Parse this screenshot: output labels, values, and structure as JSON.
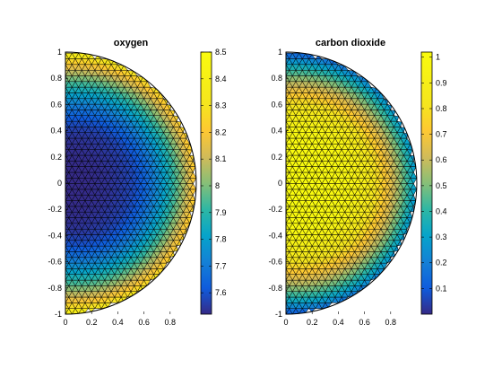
{
  "chart_data": [
    {
      "type": "heatmap",
      "title": "oxygen",
      "xlabel": "",
      "ylabel": "",
      "xlim": [
        0,
        1
      ],
      "ylim": [
        -1,
        1
      ],
      "x_ticks": [
        "0",
        "0.2",
        "0.4",
        "0.6",
        "0.8"
      ],
      "x_tick_values": [
        0,
        0.2,
        0.4,
        0.6,
        0.8
      ],
      "y_ticks": [
        "1",
        "0.8",
        "0.6",
        "0.4",
        "0.2",
        "0",
        "-0.2",
        "-0.4",
        "-0.6",
        "-0.8",
        "-1"
      ],
      "y_tick_values": [
        1,
        0.8,
        0.6,
        0.4,
        0.2,
        0,
        -0.2,
        -0.4,
        -0.6,
        -0.8,
        -1
      ],
      "domain": "half-disk, radius 1, x >= 0",
      "mesh": "triangular",
      "field": {
        "min": 7.52,
        "max": 8.5,
        "center_value": 7.52,
        "boundary_value": 8.5,
        "min_location": [
          0.15,
          0
        ]
      },
      "colorbar": {
        "range": [
          7.52,
          8.5
        ],
        "ticks": [
          "8.5",
          "8.4",
          "8.3",
          "8.2",
          "8.1",
          "8",
          "7.9",
          "7.8",
          "7.7",
          "7.6"
        ],
        "tick_values": [
          8.5,
          8.4,
          8.3,
          8.2,
          8.1,
          8.0,
          7.9,
          7.8,
          7.7,
          7.6
        ],
        "colormap": "parula"
      },
      "grid": false
    },
    {
      "type": "heatmap",
      "title": "carbon dioxide",
      "xlabel": "",
      "ylabel": "",
      "xlim": [
        0,
        1
      ],
      "ylim": [
        -1,
        1
      ],
      "x_ticks": [
        "0",
        "0.2",
        "0.4",
        "0.6",
        "0.8"
      ],
      "x_tick_values": [
        0,
        0.2,
        0.4,
        0.6,
        0.8
      ],
      "y_ticks": [
        "1",
        "0.8",
        "0.6",
        "0.4",
        "0.2",
        "0",
        "-0.2",
        "-0.4",
        "-0.6",
        "-0.8",
        "-1"
      ],
      "y_tick_values": [
        1,
        0.8,
        0.6,
        0.4,
        0.2,
        0,
        -0.2,
        -0.4,
        -0.6,
        -0.8,
        -1
      ],
      "domain": "half-disk, radius 1, x >= 0",
      "mesh": "triangular",
      "field": {
        "min": 0,
        "max": 1.02,
        "center_value": 1.02,
        "boundary_value": 0,
        "max_location": [
          0.15,
          0
        ]
      },
      "colorbar": {
        "range": [
          0,
          1.02
        ],
        "ticks": [
          "1",
          "0.9",
          "0.8",
          "0.7",
          "0.6",
          "0.5",
          "0.4",
          "0.3",
          "0.2",
          "0.1"
        ],
        "tick_values": [
          1,
          0.9,
          0.8,
          0.7,
          0.6,
          0.5,
          0.4,
          0.3,
          0.2,
          0.1
        ],
        "colormap": "parula"
      },
      "grid": false
    }
  ]
}
